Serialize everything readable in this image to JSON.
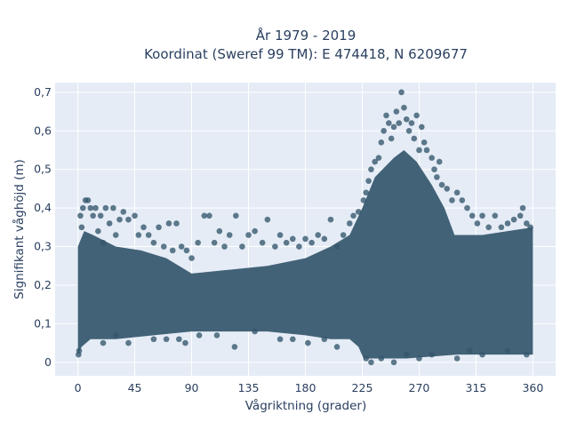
{
  "chart_data": {
    "type": "scatter",
    "title_lines": [
      "År 1979 - 2019",
      "Koordinat (Sweref 99 TM): E 474418, N 6209677"
    ],
    "xlabel": "Vågriktning (grader)",
    "ylabel": "Signifikant våghöjd (m)",
    "x_ticks": [
      {
        "value": 0,
        "label": "0"
      },
      {
        "value": 45,
        "label": "45"
      },
      {
        "value": 90,
        "label": "90"
      },
      {
        "value": 135,
        "label": "135"
      },
      {
        "value": 180,
        "label": "180"
      },
      {
        "value": 225,
        "label": "225"
      },
      {
        "value": 270,
        "label": "270"
      },
      {
        "value": 315,
        "label": "315"
      },
      {
        "value": 360,
        "label": "360"
      }
    ],
    "y_ticks": [
      {
        "value": 0,
        "label": "0"
      },
      {
        "value": 0.1,
        "label": "0,1"
      },
      {
        "value": 0.2,
        "label": "0,2"
      },
      {
        "value": 0.3,
        "label": "0,3"
      },
      {
        "value": 0.4,
        "label": "0,4"
      },
      {
        "value": 0.5,
        "label": "0,5"
      },
      {
        "value": 0.6,
        "label": "0,6"
      },
      {
        "value": 0.7,
        "label": "0,7"
      }
    ],
    "xlim": [
      -18,
      378
    ],
    "ylim": [
      -0.035,
      0.725
    ],
    "grid": true,
    "marker_color": "#34566b",
    "background_color": "#e5ecf6",
    "grid_color": "#ffffff",
    "points": [
      [
        0.5,
        0.02
      ],
      [
        1,
        0.03
      ],
      [
        2,
        0.38
      ],
      [
        3,
        0.35
      ],
      [
        4,
        0.4
      ],
      [
        6,
        0.42
      ],
      [
        8,
        0.42
      ],
      [
        10,
        0.4
      ],
      [
        12,
        0.38
      ],
      [
        14,
        0.4
      ],
      [
        16,
        0.34
      ],
      [
        18,
        0.38
      ],
      [
        20,
        0.31
      ],
      [
        22,
        0.4
      ],
      [
        25,
        0.36
      ],
      [
        28,
        0.4
      ],
      [
        30,
        0.33
      ],
      [
        33,
        0.37
      ],
      [
        36,
        0.39
      ],
      [
        40,
        0.37
      ],
      [
        45,
        0.38
      ],
      [
        48,
        0.33
      ],
      [
        52,
        0.35
      ],
      [
        56,
        0.33
      ],
      [
        60,
        0.31
      ],
      [
        64,
        0.35
      ],
      [
        68,
        0.3
      ],
      [
        72,
        0.36
      ],
      [
        75,
        0.29
      ],
      [
        78,
        0.36
      ],
      [
        82,
        0.3
      ],
      [
        86,
        0.29
      ],
      [
        90,
        0.27
      ],
      [
        95,
        0.31
      ],
      [
        100,
        0.38
      ],
      [
        104,
        0.38
      ],
      [
        108,
        0.31
      ],
      [
        112,
        0.34
      ],
      [
        116,
        0.3
      ],
      [
        120,
        0.33
      ],
      [
        125,
        0.38
      ],
      [
        130,
        0.3
      ],
      [
        135,
        0.33
      ],
      [
        140,
        0.34
      ],
      [
        146,
        0.31
      ],
      [
        150,
        0.37
      ],
      [
        156,
        0.3
      ],
      [
        160,
        0.33
      ],
      [
        165,
        0.31
      ],
      [
        170,
        0.32
      ],
      [
        175,
        0.3
      ],
      [
        180,
        0.32
      ],
      [
        185,
        0.31
      ],
      [
        190,
        0.33
      ],
      [
        195,
        0.32
      ],
      [
        200,
        0.37
      ],
      [
        205,
        0.3
      ],
      [
        210,
        0.33
      ],
      [
        215,
        0.36
      ],
      [
        218,
        0.38
      ],
      [
        222,
        0.39
      ],
      [
        226,
        0.42
      ],
      [
        228,
        0.44
      ],
      [
        230,
        0.47
      ],
      [
        232,
        0.5
      ],
      [
        235,
        0.52
      ],
      [
        238,
        0.53
      ],
      [
        240,
        0.57
      ],
      [
        242,
        0.6
      ],
      [
        244,
        0.64
      ],
      [
        246,
        0.62
      ],
      [
        248,
        0.58
      ],
      [
        250,
        0.61
      ],
      [
        252,
        0.65
      ],
      [
        254,
        0.62
      ],
      [
        256,
        0.7
      ],
      [
        258,
        0.66
      ],
      [
        260,
        0.63
      ],
      [
        262,
        0.6
      ],
      [
        264,
        0.62
      ],
      [
        266,
        0.58
      ],
      [
        268,
        0.64
      ],
      [
        270,
        0.55
      ],
      [
        272,
        0.61
      ],
      [
        274,
        0.57
      ],
      [
        276,
        0.55
      ],
      [
        280,
        0.53
      ],
      [
        282,
        0.5
      ],
      [
        284,
        0.48
      ],
      [
        286,
        0.52
      ],
      [
        288,
        0.46
      ],
      [
        292,
        0.45
      ],
      [
        296,
        0.42
      ],
      [
        300,
        0.44
      ],
      [
        304,
        0.42
      ],
      [
        308,
        0.4
      ],
      [
        312,
        0.38
      ],
      [
        316,
        0.36
      ],
      [
        320,
        0.38
      ],
      [
        325,
        0.35
      ],
      [
        330,
        0.38
      ],
      [
        335,
        0.35
      ],
      [
        340,
        0.36
      ],
      [
        345,
        0.37
      ],
      [
        350,
        0.38
      ],
      [
        352,
        0.4
      ],
      [
        355,
        0.36
      ],
      [
        358,
        0.35
      ],
      [
        228,
        0.01
      ],
      [
        232,
        0.0
      ],
      [
        240,
        0.01
      ],
      [
        250,
        0.0
      ],
      [
        260,
        0.02
      ],
      [
        270,
        0.01
      ],
      [
        280,
        0.02
      ],
      [
        300,
        0.01
      ],
      [
        310,
        0.03
      ],
      [
        320,
        0.02
      ],
      [
        340,
        0.03
      ],
      [
        355,
        0.02
      ],
      [
        20,
        0.05
      ],
      [
        30,
        0.07
      ],
      [
        40,
        0.05
      ],
      [
        60,
        0.06
      ],
      [
        70,
        0.06
      ],
      [
        80,
        0.06
      ],
      [
        85,
        0.05
      ],
      [
        96,
        0.07
      ],
      [
        110,
        0.07
      ],
      [
        124,
        0.04
      ],
      [
        140,
        0.08
      ],
      [
        160,
        0.06
      ],
      [
        170,
        0.06
      ],
      [
        182,
        0.05
      ],
      [
        195,
        0.06
      ],
      [
        205,
        0.04
      ]
    ]
  }
}
